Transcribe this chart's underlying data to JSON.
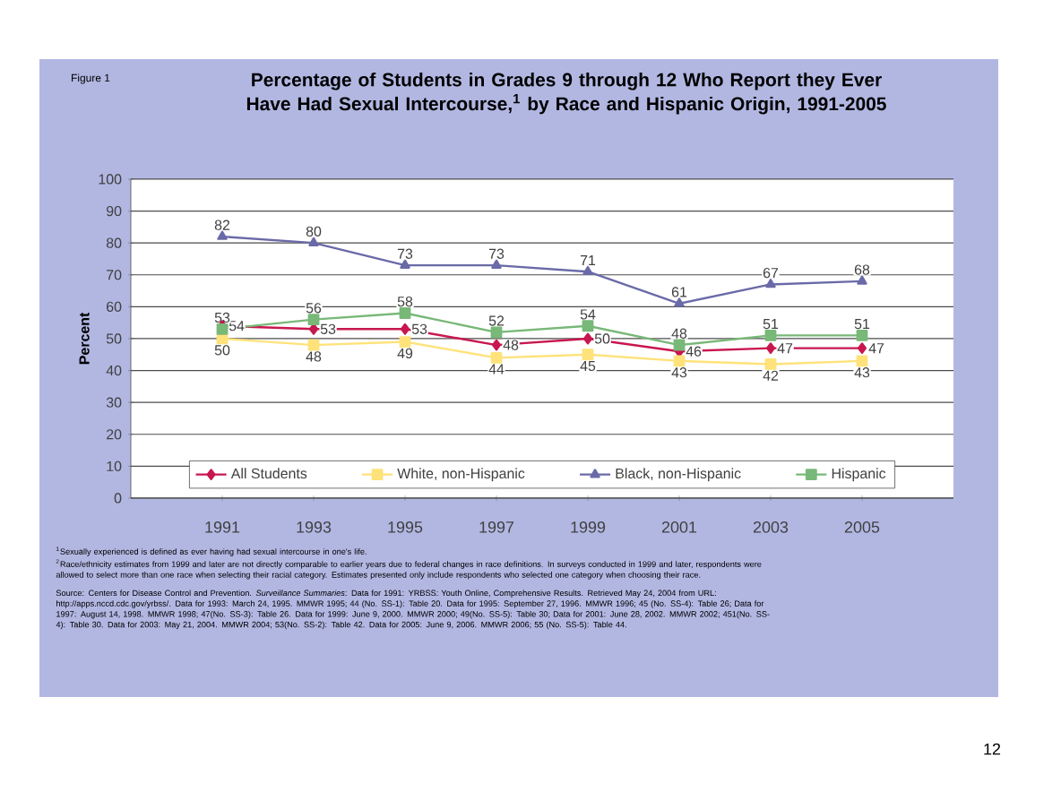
{
  "chart_data": {
    "type": "line",
    "title": "Percentage of Students in Grades 9 through 12 Who Report they Ever Have Had Sexual Intercourse,$^{1}$ by Race and Hispanic Origin, 1991-2005",
    "ylabel": "Percent",
    "categories": [
      "1991",
      "1993",
      "1995",
      "1997",
      "1999",
      "2001",
      "2003",
      "2005"
    ],
    "series": [
      {
        "name": "All Students",
        "color": "#c8174f",
        "marker": "diamond",
        "values": [
          54,
          53,
          53,
          48,
          50,
          46,
          47,
          47
        ]
      },
      {
        "name": "White, non-Hispanic",
        "color": "#ffe27a",
        "marker": "square",
        "values": [
          50,
          48,
          49,
          44,
          45,
          43,
          42,
          43
        ]
      },
      {
        "name": "Black, non-Hispanic",
        "color": "#6a6aa8",
        "marker": "triangle",
        "values": [
          82,
          80,
          73,
          73,
          71,
          61,
          67,
          68
        ]
      },
      {
        "name": "Hispanic",
        "color": "#78b878",
        "marker": "square",
        "values": [
          53,
          56,
          58,
          52,
          54,
          48,
          51,
          51
        ]
      }
    ],
    "ylim": [
      0,
      100
    ],
    "yticks": [
      0,
      10,
      20,
      30,
      40,
      50,
      60,
      70,
      80,
      90,
      100
    ],
    "grid": "y",
    "legend": "bottom",
    "data_labels": true,
    "annotations": [
      "Figure 1",
      "$^{1}$Sexually experienced is defined as ever having had sexual intercourse in one's life.",
      "$^{2}$Race/ethnicity estimates from 1999 and later are not directly comparable to earlier years due to federal changes in race definitions. In surveys conducted in 1999 and later, respondents were allowed to select more than one race when selecting their racial category. Estimates presented only include respondents who selected one category when choosing their race.",
      "Source: Centers for Disease Control and Prevention. *Surveillance Summaries*: Data for 1991: YRBSS: Youth Online, Comprehensive Results. Retrieved May 24, 2004 from URL: http://apps.nccd.cdc.gov/yrbss/. Data for 1993: March 24, 1995. MMWR 1995; 44 (No. SS-1): Table 20. Data for 1995: September 27, 1996. MMWR 1996; 45 (No. SS-4): Table 26; Data for 1997: August 14, 1998. MMWR 1998; 47(No. SS-3): Table 26. Data for 1999: June 9, 2000. MMWR 2000; 49(No. SS-5): Table 30; Data for 2001: June 28, 2002. MMWR 2002; 451(No. SS-4): Table 30. Data for 2003: May 21, 2004. MMWR 2004; 53(No. SS-2): Table 42. Data for 2005: June 9, 2006. MMWR 2006; 55 (No. SS-5): Table 44.",
      "12"
    ]
  }
}
